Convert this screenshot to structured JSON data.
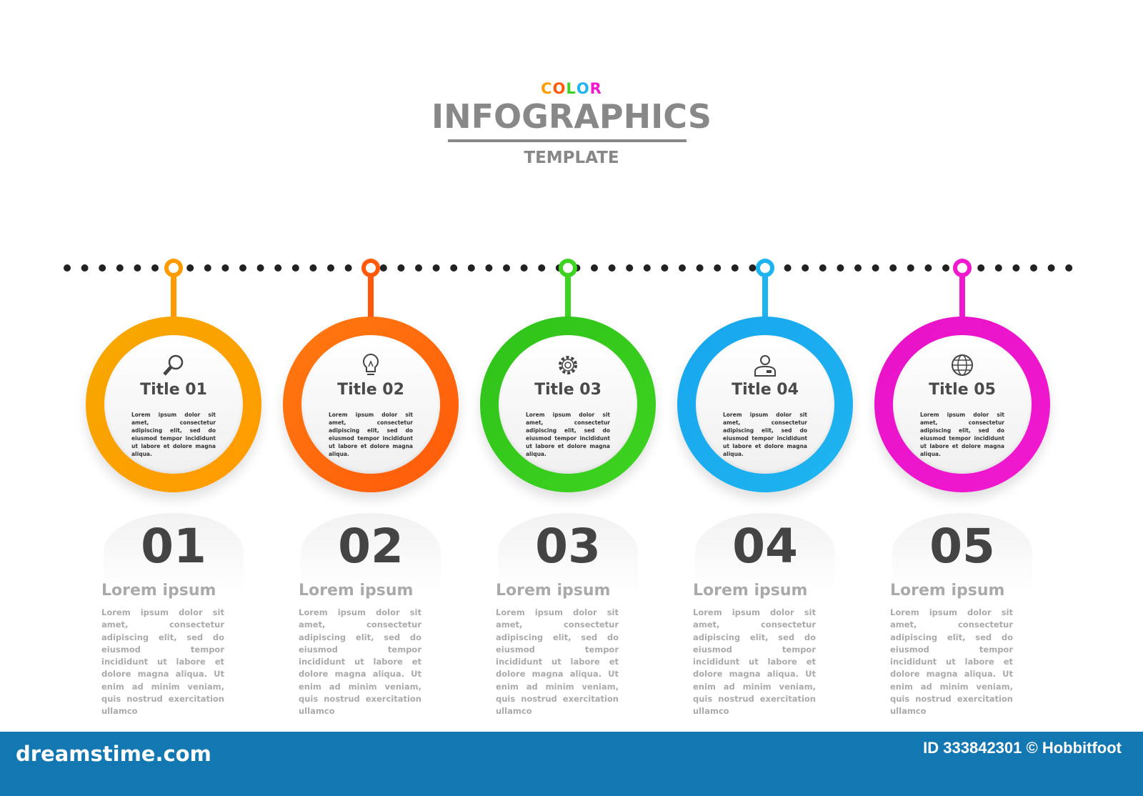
{
  "header": {
    "color_word": [
      "C",
      "O",
      "L",
      "O",
      "R"
    ],
    "color_letters_colors": [
      "#ff9a00",
      "#ff5a0a",
      "#3ed320",
      "#1eb4f0",
      "#f019d0"
    ],
    "title": "INFOGRAPHICS",
    "subtitle": "TEMPLATE"
  },
  "steps": [
    {
      "title": "Title 01",
      "number": "01",
      "icon": "magnifier-icon",
      "color": "#ff9a00",
      "color2": "#f7a800"
    },
    {
      "title": "Title 02",
      "number": "02",
      "icon": "lightbulb-icon",
      "color": "#ff5a0a",
      "color2": "#ff7a10"
    },
    {
      "title": "Title 03",
      "number": "03",
      "icon": "gear-icon",
      "color": "#3ed320",
      "color2": "#2fc21a"
    },
    {
      "title": "Title 04",
      "number": "04",
      "icon": "user-icon",
      "color": "#1eb4f0",
      "color2": "#18a6ee"
    },
    {
      "title": "Title 05",
      "number": "05",
      "icon": "globe-icon",
      "color": "#f019d0",
      "color2": "#e812c8"
    }
  ],
  "circle_text": "Lorem ipsum dolor sit amet, consectetur adipiscing elit, sed do eiusmod tempor incididunt ut labore et dolore magna aliqua.",
  "subheading": "Lorem ipsum",
  "body_text": "Lorem ipsum dolor sit amet, consectetur adipiscing elit, sed do eiusmod tempor incididunt ut labore et dolore magna aliqua. Ut enim ad minim veniam, quis nostrud exercitation ullamco",
  "footer": {
    "brand": "dreamstime.com",
    "credit": "ID 333842301 © Hobbitfoot",
    "background": "#1378b2"
  }
}
